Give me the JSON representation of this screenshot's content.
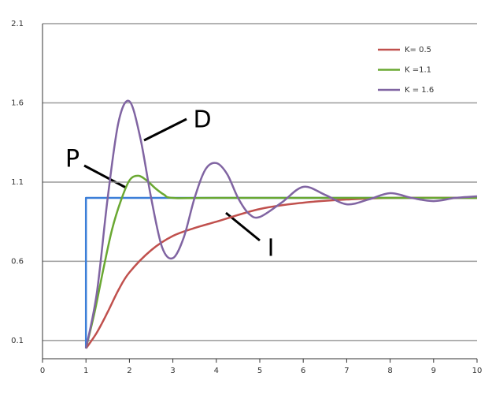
{
  "chart_data": {
    "type": "line",
    "xlim": [
      0,
      10
    ],
    "xticks": [
      0,
      1,
      2,
      3,
      4,
      5,
      6,
      7,
      8,
      9,
      10
    ],
    "ylim": [
      0,
      2.1
    ],
    "yticks": [
      0.1,
      0.6,
      1.1,
      1.6,
      2.1
    ],
    "grid": true,
    "legend": "upper right",
    "series": [
      {
        "color": "#3c7fd8",
        "step": true,
        "x": [
          1,
          1,
          10
        ],
        "values": [
          0.05,
          1.0,
          1.0
        ]
      },
      {
        "name": "K= 0.5",
        "color": "#c0504d",
        "x": [
          1,
          1.25,
          1.5,
          1.75,
          2,
          2.5,
          3,
          3.5,
          4,
          5,
          6,
          7,
          8,
          10
        ],
        "values": [
          0.05,
          0.15,
          0.28,
          0.42,
          0.53,
          0.67,
          0.76,
          0.81,
          0.85,
          0.93,
          0.97,
          0.99,
          1.0,
          1.0
        ]
      },
      {
        "name": "K =1.1",
        "color": "#6aa832",
        "x": [
          1,
          1.2,
          1.4,
          1.6,
          1.8,
          2.0,
          2.2,
          2.4,
          2.6,
          2.8,
          3.0,
          4,
          10
        ],
        "values": [
          0.05,
          0.28,
          0.55,
          0.8,
          0.98,
          1.11,
          1.14,
          1.11,
          1.06,
          1.02,
          1.0,
          1.0,
          1.0
        ]
      },
      {
        "name": "K = 1.6",
        "color": "#8064a2",
        "x": [
          1,
          1.25,
          1.5,
          1.75,
          2,
          2.25,
          2.5,
          2.75,
          3,
          3.25,
          3.5,
          3.75,
          4,
          4.25,
          4.5,
          4.75,
          5,
          5.5,
          6,
          6.5,
          7,
          7.5,
          8,
          8.5,
          9,
          9.5,
          10
        ],
        "values": [
          0.05,
          0.4,
          1.0,
          1.48,
          1.61,
          1.38,
          1.0,
          0.69,
          0.62,
          0.75,
          1.0,
          1.18,
          1.22,
          1.15,
          1.0,
          0.9,
          0.88,
          0.97,
          1.07,
          1.02,
          0.96,
          0.99,
          1.03,
          1.0,
          0.98,
          1.0,
          1.01
        ]
      }
    ],
    "annotations": [
      "D",
      "P",
      "I"
    ]
  }
}
